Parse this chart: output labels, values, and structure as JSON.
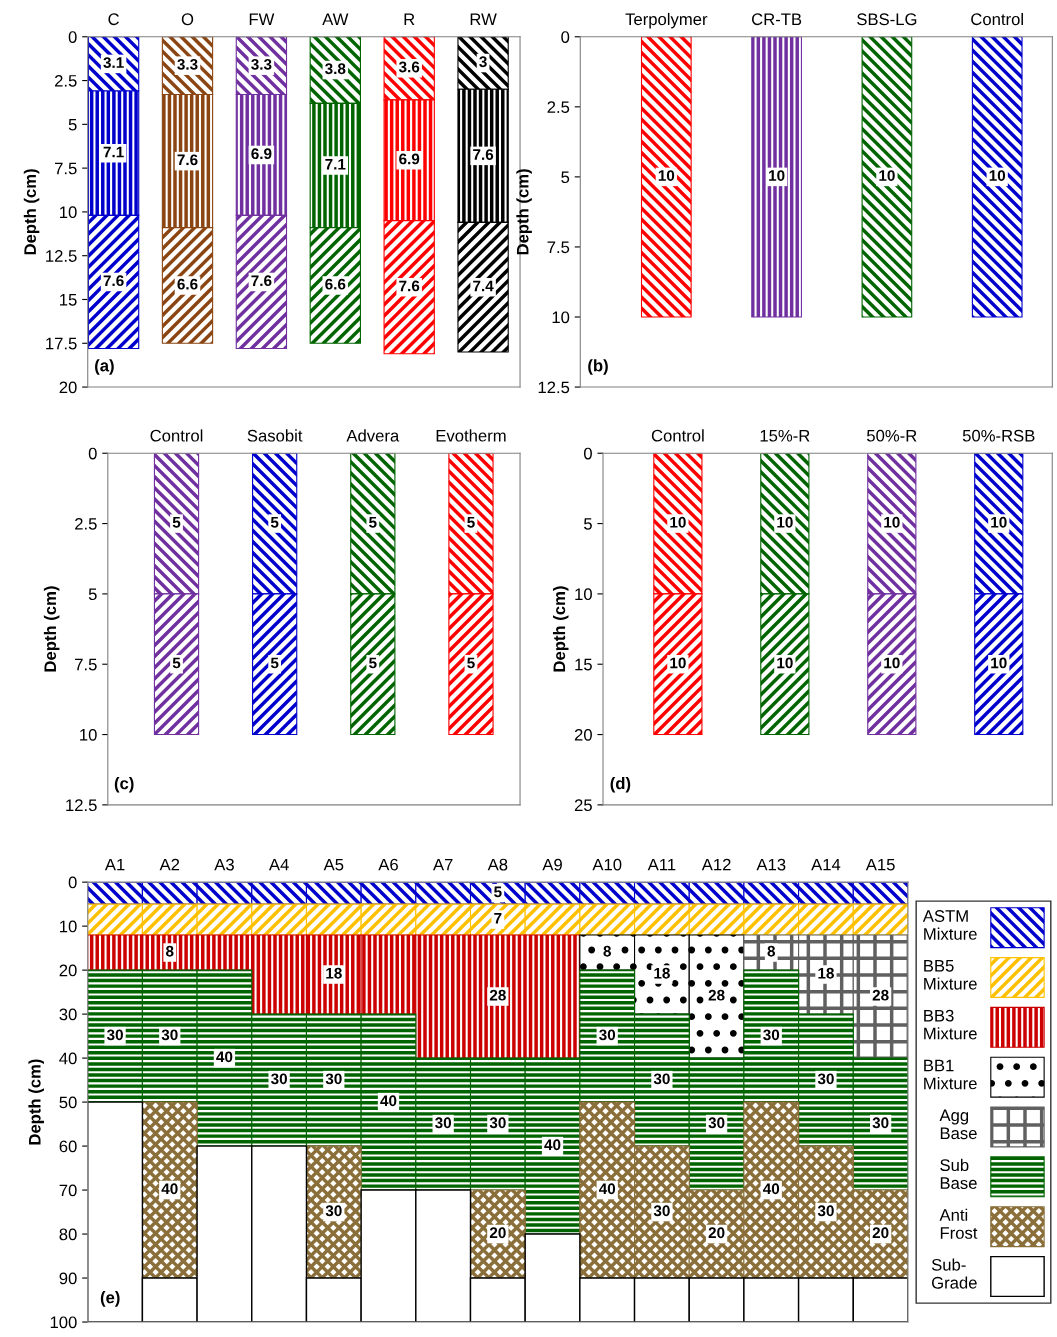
{
  "chart_data": [
    {
      "type": "bar",
      "stacked": true,
      "ylabel": "Depth (cm)",
      "annotations": [
        "(a)"
      ],
      "data_labels": true,
      "ylim": [
        20,
        0
      ],
      "yticks": [
        0,
        2.5,
        5,
        7.5,
        10,
        12.5,
        15,
        17.5,
        20
      ],
      "grid": false,
      "legend": false,
      "categories": [
        "C",
        "O",
        "FW",
        "AW",
        "R",
        "RW"
      ],
      "series": [
        {
          "colors": [
            "#0000cc",
            "#8b4513",
            "#7030a0",
            "#006400",
            "#ff0000",
            "#000000"
          ],
          "values": [
            3.1,
            3.3,
            3.3,
            3.8,
            3.6,
            3
          ]
        },
        {
          "colors": [
            "#0000cc",
            "#8b4513",
            "#7030a0",
            "#006400",
            "#ff0000",
            "#000000"
          ],
          "values": [
            7.1,
            7.6,
            6.9,
            7.1,
            6.9,
            7.6
          ]
        },
        {
          "colors": [
            "#0000cc",
            "#8b4513",
            "#7030a0",
            "#006400",
            "#ff0000",
            "#000000"
          ],
          "values": [
            7.6,
            6.6,
            7.6,
            6.6,
            7.6,
            7.4
          ]
        }
      ]
    },
    {
      "type": "bar",
      "stacked": true,
      "ylabel": "Depth (cm)",
      "annotations": [
        "(b)"
      ],
      "data_labels": true,
      "ylim": [
        12.5,
        0
      ],
      "yticks": [
        0,
        2.5,
        5,
        7.5,
        10,
        12.5
      ],
      "grid": false,
      "legend": false,
      "categories": [
        "Terpolymer",
        "CR-TB",
        "SBS-LG",
        "Control"
      ],
      "series": [
        {
          "colors": [
            "#ff0000",
            "#7030a0",
            "#006400",
            "#0000cc"
          ],
          "values": [
            10,
            10,
            10,
            10
          ]
        }
      ]
    },
    {
      "type": "bar",
      "stacked": true,
      "ylabel": "Depth (cm)",
      "annotations": [
        "(c)"
      ],
      "data_labels": true,
      "ylim": [
        12.5,
        0
      ],
      "yticks": [
        0,
        2.5,
        5,
        7.5,
        10,
        12.5
      ],
      "grid": false,
      "legend": false,
      "categories": [
        "Control",
        "Sasobit",
        "Advera",
        "Evotherm"
      ],
      "series": [
        {
          "colors": [
            "#7030a0",
            "#0000cc",
            "#006400",
            "#ff0000"
          ],
          "values": [
            5,
            5,
            5,
            5
          ]
        },
        {
          "colors": [
            "#7030a0",
            "#0000cc",
            "#006400",
            "#ff0000"
          ],
          "values": [
            5,
            5,
            5,
            5
          ]
        }
      ]
    },
    {
      "type": "bar",
      "stacked": true,
      "ylabel": "Depth (cm)",
      "annotations": [
        "(d)"
      ],
      "data_labels": true,
      "ylim": [
        25,
        0
      ],
      "yticks": [
        0,
        5,
        10,
        15,
        20,
        25
      ],
      "grid": false,
      "legend": false,
      "categories": [
        "Control",
        "15%-R",
        "50%-R",
        "50%-RSB"
      ],
      "series": [
        {
          "colors": [
            "#ff0000",
            "#006400",
            "#7030a0",
            "#0000cc"
          ],
          "values": [
            10,
            10,
            10,
            10
          ]
        },
        {
          "colors": [
            "#ff0000",
            "#006400",
            "#7030a0",
            "#0000cc"
          ],
          "values": [
            10,
            10,
            10,
            10
          ]
        }
      ]
    },
    {
      "type": "bar",
      "stacked": true,
      "ylabel": "Depth (cm)",
      "annotations": [
        "(e)"
      ],
      "ylim": [
        100,
        0
      ],
      "yticks": [
        0,
        10,
        20,
        30,
        40,
        50,
        60,
        70,
        80,
        90,
        100
      ],
      "grid": false,
      "legend": "right",
      "categories": [
        "A1",
        "A2",
        "A3",
        "A4",
        "A5",
        "A6",
        "A7",
        "A8",
        "A9",
        "A10",
        "A11",
        "A12",
        "A13",
        "A14",
        "A15"
      ],
      "series": [
        {
          "name": "ASTM\nMixture",
          "color": "#0000cc",
          "values": [
            5,
            5,
            5,
            5,
            5,
            5,
            5,
            5,
            5,
            5,
            5,
            5,
            5,
            5,
            5
          ],
          "value_labels": [
            null,
            null,
            null,
            null,
            null,
            null,
            null,
            "5",
            null,
            null,
            null,
            null,
            null,
            null,
            null
          ]
        },
        {
          "name": "BB5\nMixture",
          "color": "#ffc000",
          "values": [
            7,
            7,
            7,
            7,
            7,
            7,
            7,
            7,
            7,
            7,
            7,
            7,
            7,
            7,
            7
          ],
          "value_labels": [
            null,
            null,
            null,
            null,
            null,
            null,
            null,
            "7",
            null,
            null,
            null,
            null,
            null,
            null,
            null
          ]
        },
        {
          "name": "BB3\nMixture",
          "color": "#cc0000",
          "values": [
            8,
            8,
            8,
            18,
            18,
            18,
            28,
            28,
            28,
            null,
            null,
            null,
            null,
            null,
            null
          ],
          "value_labels": [
            null,
            "8",
            null,
            null,
            "18",
            null,
            null,
            "28",
            null,
            null,
            null,
            null,
            null,
            null,
            null
          ]
        },
        {
          "name": "BB1\nMixture",
          "color": "#000000",
          "values": [
            null,
            null,
            null,
            null,
            null,
            null,
            null,
            null,
            null,
            8,
            18,
            28,
            null,
            null,
            null
          ],
          "value_labels": [
            null,
            null,
            null,
            null,
            null,
            null,
            null,
            null,
            null,
            "8",
            "18",
            "28",
            null,
            null,
            null
          ]
        },
        {
          "name": "Agg\nBase",
          "color": "#606060",
          "values": [
            null,
            null,
            null,
            null,
            null,
            null,
            null,
            null,
            null,
            null,
            null,
            null,
            8,
            18,
            28
          ],
          "value_labels": [
            null,
            null,
            null,
            null,
            null,
            null,
            null,
            null,
            null,
            null,
            null,
            null,
            "8",
            "18",
            "28"
          ]
        },
        {
          "name": "Sub\nBase",
          "color": "#006400",
          "values": [
            30,
            30,
            40,
            30,
            30,
            40,
            30,
            30,
            40,
            30,
            30,
            30,
            30,
            30,
            30
          ],
          "value_labels": [
            "30",
            "30",
            "40",
            "30",
            "30",
            "40",
            "30",
            "30",
            "40",
            "30",
            "30",
            "30",
            "30",
            "30",
            "30"
          ]
        },
        {
          "name": "Anti\nFrost",
          "color": "#8b6f3a",
          "values": [
            null,
            40,
            null,
            null,
            30,
            null,
            null,
            20,
            null,
            40,
            30,
            20,
            40,
            30,
            20
          ],
          "value_labels": [
            null,
            "40",
            null,
            null,
            "30",
            null,
            null,
            "20",
            null,
            "40",
            "30",
            "20",
            "40",
            "30",
            "20"
          ]
        },
        {
          "name": "Sub-\nGrade",
          "color": "#ffffff",
          "values": [
            50,
            10,
            40,
            40,
            10,
            30,
            30,
            10,
            20,
            10,
            10,
            10,
            10,
            10,
            10
          ]
        }
      ]
    }
  ]
}
